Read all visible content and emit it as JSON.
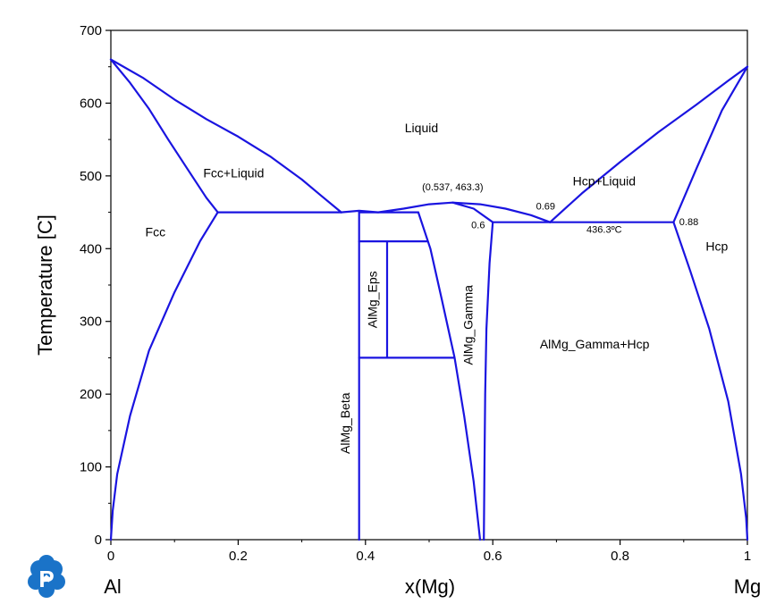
{
  "chart_data": {
    "type": "line",
    "title": "",
    "xlabel": "x(Mg)",
    "ylabel": "Temperature [C]",
    "xlim": [
      0,
      1
    ],
    "ylim": [
      0,
      700
    ],
    "x_ticks": [
      "0",
      "0.2",
      "0.4",
      "0.6",
      "0.8",
      "1"
    ],
    "y_ticks": [
      "0",
      "100",
      "200",
      "300",
      "400",
      "500",
      "600",
      "700"
    ],
    "x_end_labels": {
      "left": "Al",
      "right": "Mg"
    },
    "line_color": "#1a14e0",
    "region_labels": [
      {
        "text": "Liquid",
        "x": 0.488,
        "y": 560,
        "rotate": 0
      },
      {
        "text": "Fcc+Liquid",
        "x": 0.193,
        "y": 498,
        "rotate": 0
      },
      {
        "text": "Fcc",
        "x": 0.07,
        "y": 417,
        "rotate": 0
      },
      {
        "text": "Hcp+Liquid",
        "x": 0.775,
        "y": 487,
        "rotate": 0
      },
      {
        "text": "Hcp",
        "x": 0.952,
        "y": 397,
        "rotate": 0
      },
      {
        "text": "AlMg_Gamma+Hcp",
        "x": 0.76,
        "y": 263,
        "rotate": 0
      },
      {
        "text": "AlMg_Beta",
        "x": 0.375,
        "y": 160,
        "rotate": -90
      },
      {
        "text": "AlMg_Eps",
        "x": 0.418,
        "y": 330,
        "rotate": -90
      },
      {
        "text": "AlMg_Gamma",
        "x": 0.568,
        "y": 295,
        "rotate": -90
      }
    ],
    "annotations": [
      {
        "text": "(0.537, 463.3)",
        "x": 0.537,
        "y": 480
      },
      {
        "text": "0.69",
        "x": 0.683,
        "y": 454
      },
      {
        "text": "0.6",
        "x": 0.577,
        "y": 428
      },
      {
        "text": "436.3ºC",
        "x": 0.775,
        "y": 422
      },
      {
        "text": "0.88",
        "x": 0.908,
        "y": 432
      }
    ],
    "series": [
      {
        "values": [
          [
            0,
            660
          ],
          [
            0.03,
            628
          ],
          [
            0.06,
            592
          ],
          [
            0.09,
            550
          ],
          [
            0.12,
            510
          ],
          [
            0.15,
            470
          ],
          [
            0.168,
            450
          ]
        ]
      },
      {
        "values": [
          [
            0,
            660
          ],
          [
            0.05,
            635
          ],
          [
            0.1,
            605
          ],
          [
            0.15,
            578
          ],
          [
            0.2,
            554
          ],
          [
            0.25,
            527
          ],
          [
            0.3,
            495
          ],
          [
            0.33,
            473
          ],
          [
            0.362,
            450
          ]
        ]
      },
      {
        "values": [
          [
            0,
            0
          ],
          [
            0.003,
            40
          ],
          [
            0.01,
            90
          ],
          [
            0.03,
            170
          ],
          [
            0.06,
            260
          ],
          [
            0.1,
            340
          ],
          [
            0.14,
            410
          ],
          [
            0.168,
            450
          ]
        ]
      },
      {
        "values": [
          [
            0.168,
            450
          ],
          [
            0.362,
            450
          ]
        ]
      },
      {
        "values": [
          [
            0.362,
            450
          ],
          [
            0.39,
            452
          ],
          [
            0.42,
            450
          ],
          [
            0.46,
            455
          ],
          [
            0.5,
            461
          ],
          [
            0.537,
            463.3
          ],
          [
            0.58,
            461
          ],
          [
            0.62,
            455
          ],
          [
            0.66,
            446
          ],
          [
            0.69,
            436.3
          ]
        ]
      },
      {
        "values": [
          [
            0.39,
            450
          ],
          [
            0.39,
            0
          ]
        ]
      },
      {
        "values": [
          [
            0.39,
            450
          ],
          [
            0.483,
            450
          ]
        ]
      },
      {
        "values": [
          [
            0.39,
            410
          ],
          [
            0.498,
            410
          ]
        ]
      },
      {
        "values": [
          [
            0.39,
            250
          ],
          [
            0.539,
            250
          ]
        ]
      },
      {
        "values": [
          [
            0.434,
            410
          ],
          [
            0.434,
            250
          ]
        ]
      },
      {
        "values": [
          [
            0.483,
            450
          ],
          [
            0.502,
            400
          ],
          [
            0.52,
            330
          ],
          [
            0.54,
            250
          ],
          [
            0.555,
            170
          ],
          [
            0.57,
            80
          ],
          [
            0.58,
            0
          ]
        ]
      },
      {
        "values": [
          [
            0.537,
            463.3
          ],
          [
            0.57,
            455
          ],
          [
            0.6,
            436.3
          ]
        ]
      },
      {
        "values": [
          [
            0.6,
            436.3
          ],
          [
            0.595,
            380
          ],
          [
            0.59,
            290
          ],
          [
            0.588,
            200
          ],
          [
            0.587,
            100
          ],
          [
            0.586,
            0
          ]
        ]
      },
      {
        "values": [
          [
            0.6,
            436.3
          ],
          [
            0.884,
            436.3
          ]
        ]
      },
      {
        "values": [
          [
            0.69,
            436.3
          ],
          [
            0.74,
            476
          ],
          [
            0.8,
            519
          ],
          [
            0.86,
            560
          ],
          [
            0.92,
            598
          ],
          [
            0.97,
            631
          ],
          [
            1,
            650
          ]
        ]
      },
      {
        "values": [
          [
            0.884,
            436.3
          ],
          [
            0.92,
            510
          ],
          [
            0.96,
            590
          ],
          [
            1,
            650
          ]
        ]
      },
      {
        "values": [
          [
            0.884,
            436.3
          ],
          [
            0.91,
            370
          ],
          [
            0.94,
            290
          ],
          [
            0.97,
            190
          ],
          [
            0.99,
            90
          ],
          [
            0.998,
            30
          ],
          [
            1,
            0
          ]
        ]
      }
    ]
  }
}
